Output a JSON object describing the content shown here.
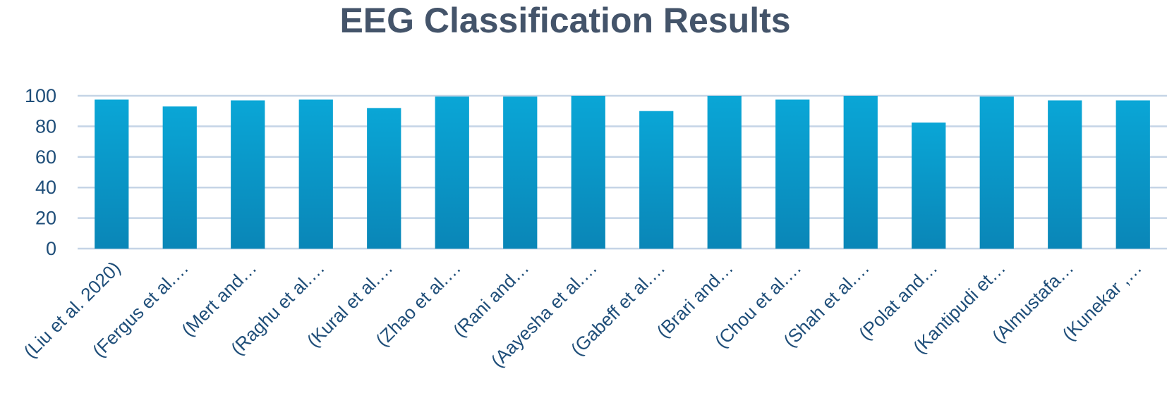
{
  "chart_data": {
    "type": "bar",
    "title": "EEG Classification Results",
    "xlabel": "",
    "ylabel": "",
    "ylim": [
      0,
      100
    ],
    "yticks": [
      0,
      20,
      40,
      60,
      80,
      100
    ],
    "grid": true,
    "legend": "none",
    "colors": {
      "bar_top": "#0aa6d6",
      "bar_bottom": "#0a86b7",
      "grid": "#c5d4e6",
      "text": "#1f4e79",
      "title": "#44546a"
    },
    "categories": [
      "(Liu et al. 2020)",
      "(Fergus et al.…",
      "(Mert and…",
      "(Raghu et al.…",
      "(Kural et al.…",
      "(Zhao et al.…",
      "(Rani and…",
      "(Aayesha et al.…",
      "(Gabeff et al.…",
      "(Brari and…",
      "(Chou et al.…",
      "(Shah et al.…",
      "(Polat and…",
      "(Kantipudi et…",
      "(Almustafa…",
      "(Kunekar ,…"
    ],
    "values": [
      97.5,
      93,
      97,
      97.5,
      92,
      99.5,
      99.5,
      100,
      90,
      100,
      97.5,
      100,
      82.5,
      99.5,
      97,
      97
    ]
  }
}
